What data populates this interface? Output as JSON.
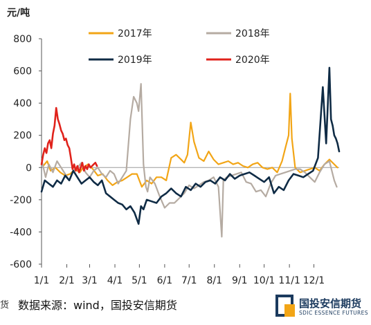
{
  "unit": "元/吨",
  "source": "数据来源：wind，国投安信期货",
  "left_edge_text": "货",
  "logo": {
    "cn": "国投安信期货",
    "en": "SDIC ESSENCE FUTURES"
  },
  "chart_data": {
    "type": "line",
    "title": "",
    "ylabel": "元/吨",
    "xlabel": "",
    "ylim": [
      -600,
      800
    ],
    "yticks": [
      800,
      600,
      400,
      200,
      0,
      -200,
      -400,
      -600
    ],
    "xlim": [
      1,
      366
    ],
    "xticks": [
      {
        "label": "1/1",
        "day": 1
      },
      {
        "label": "2/1",
        "day": 32
      },
      {
        "label": "3/1",
        "day": 60
      },
      {
        "label": "4/1",
        "day": 91
      },
      {
        "label": "5/1",
        "day": 121
      },
      {
        "label": "6/1",
        "day": 152
      },
      {
        "label": "7/1",
        "day": 182
      },
      {
        "label": "8/1",
        "day": 213
      },
      {
        "label": "9/1",
        "day": 244
      },
      {
        "label": "10/1",
        "day": 274
      },
      {
        "label": "11/1",
        "day": 305
      },
      {
        "label": "12/1",
        "day": 335
      }
    ],
    "legend_placement": "top",
    "series": [
      {
        "name": "2017年",
        "color": "#F2A516",
        "x": [
          3,
          8,
          12,
          18,
          24,
          30,
          36,
          42,
          48,
          52,
          58,
          64,
          70,
          76,
          82,
          88,
          94,
          100,
          106,
          112,
          118,
          124,
          130,
          136,
          142,
          148,
          154,
          160,
          166,
          172,
          176,
          180,
          184,
          188,
          194,
          200,
          206,
          212,
          218,
          224,
          230,
          236,
          242,
          248,
          254,
          260,
          266,
          272,
          278,
          284,
          290,
          296,
          300,
          304,
          306,
          308,
          312,
          318,
          324,
          330,
          336,
          342,
          348,
          354,
          360,
          364
        ],
        "y": [
          10,
          40,
          -20,
          0,
          -30,
          -50,
          -40,
          -10,
          -30,
          0,
          20,
          -10,
          -50,
          -40,
          -80,
          -110,
          -90,
          -80,
          -60,
          -40,
          -40,
          -120,
          -80,
          -100,
          -60,
          -60,
          -80,
          60,
          80,
          50,
          30,
          80,
          280,
          160,
          60,
          40,
          100,
          50,
          20,
          30,
          40,
          20,
          30,
          10,
          0,
          20,
          30,
          0,
          -10,
          0,
          -30,
          40,
          120,
          200,
          460,
          180,
          0,
          -30,
          -20,
          -10,
          0,
          -20,
          20,
          50,
          20,
          0
        ]
      },
      {
        "name": "2018年",
        "color": "#B5ABA2",
        "x": [
          1,
          6,
          10,
          15,
          20,
          25,
          30,
          35,
          40,
          45,
          50,
          55,
          60,
          65,
          70,
          75,
          80,
          85,
          90,
          95,
          100,
          105,
          110,
          114,
          118,
          120,
          123,
          126,
          129,
          131,
          134,
          140,
          146,
          152,
          158,
          164,
          170,
          176,
          182,
          188,
          194,
          200,
          206,
          212,
          218,
          222,
          224,
          228,
          234,
          240,
          246,
          252,
          258,
          264,
          270,
          276,
          282,
          288,
          294,
          300,
          306,
          312,
          318,
          324,
          330,
          336,
          342,
          348,
          354,
          360,
          363
        ],
        "y": [
          50,
          -60,
          20,
          -30,
          40,
          0,
          -40,
          -80,
          -20,
          0,
          30,
          -30,
          -60,
          -20,
          0,
          -40,
          -60,
          -20,
          -40,
          -100,
          -60,
          -20,
          300,
          440,
          400,
          350,
          520,
          20,
          -120,
          -150,
          -60,
          -100,
          -180,
          -250,
          -220,
          -220,
          -190,
          -160,
          -110,
          -130,
          -110,
          -90,
          -80,
          -60,
          -120,
          -430,
          -80,
          -60,
          -50,
          -40,
          -30,
          -90,
          -100,
          -150,
          -140,
          -180,
          -100,
          -50,
          -40,
          -30,
          -20,
          -10,
          -10,
          -30,
          -60,
          -90,
          -30,
          20,
          40,
          -80,
          -120
        ]
      },
      {
        "name": "2019年",
        "color": "#0F2B45",
        "x": [
          1,
          5,
          10,
          15,
          20,
          25,
          30,
          35,
          40,
          45,
          50,
          55,
          60,
          65,
          70,
          75,
          80,
          85,
          90,
          95,
          100,
          105,
          110,
          115,
          120,
          123,
          126,
          130,
          136,
          142,
          148,
          154,
          160,
          166,
          172,
          178,
          184,
          190,
          196,
          202,
          208,
          214,
          220,
          226,
          232,
          238,
          244,
          250,
          256,
          262,
          268,
          274,
          280,
          286,
          292,
          298,
          304,
          310,
          316,
          322,
          328,
          334,
          340,
          346,
          350,
          354,
          356,
          358,
          360,
          362,
          364,
          366
        ],
        "y": [
          -150,
          -80,
          -100,
          -120,
          -80,
          -100,
          -50,
          -80,
          -20,
          -60,
          -100,
          -80,
          -60,
          -90,
          -110,
          -80,
          -160,
          -180,
          -200,
          -220,
          -230,
          -260,
          -240,
          -280,
          -350,
          -240,
          -260,
          -200,
          -210,
          -220,
          -180,
          -160,
          -130,
          -160,
          -180,
          -120,
          -140,
          -100,
          -120,
          -90,
          -80,
          -100,
          -60,
          -80,
          -40,
          -70,
          -50,
          -40,
          -30,
          -50,
          -70,
          -90,
          -60,
          -160,
          -120,
          -140,
          -80,
          -40,
          -50,
          -60,
          -40,
          -20,
          60,
          500,
          150,
          620,
          300,
          260,
          200,
          180,
          150,
          100
        ]
      },
      {
        "name": "2020年",
        "color": "#E0221B",
        "x": [
          1,
          3,
          5,
          7,
          9,
          11,
          13,
          15,
          17,
          19,
          21,
          23,
          25,
          27,
          29,
          31,
          33,
          35,
          37,
          39,
          41,
          43,
          45,
          47,
          49,
          51,
          53,
          55,
          57,
          59,
          61,
          63,
          65,
          67,
          69
        ],
        "y": [
          20,
          80,
          120,
          90,
          150,
          170,
          120,
          210,
          260,
          370,
          300,
          270,
          230,
          210,
          170,
          180,
          140,
          120,
          60,
          -10,
          20,
          -20,
          10,
          -30,
          0,
          30,
          -20,
          10,
          -10,
          20,
          0,
          10,
          20,
          30,
          10
        ]
      }
    ]
  }
}
